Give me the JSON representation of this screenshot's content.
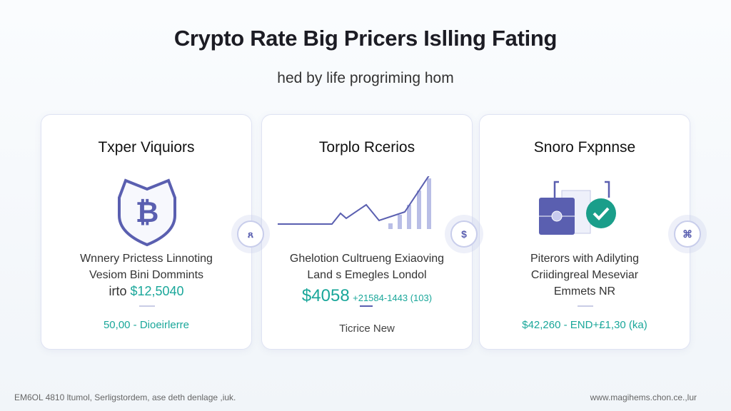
{
  "header": {
    "title": "Crypto Rate Big Pricers Islling Fating",
    "subtitle": "hed by life progriming hom"
  },
  "cards": [
    {
      "title": "Txper Viquiors",
      "icon": "bitcoin-shield-icon",
      "desc_lines": [
        "Wnnery Prictess Linnoting",
        "Vesiom Bini Dommints"
      ],
      "desc_prefix": "irto ",
      "price": "$12,5040",
      "footer": "50,00 - Dioeirlerre"
    },
    {
      "title": "Torplo Rcerios",
      "icon": "growth-chart-icon",
      "desc_lines": [
        "Ghelotion Cultrueng Exiaoving",
        "Land s Emegles Londol"
      ],
      "price": "$4058",
      "price_detail": "+21584-1443 (103)",
      "footer": "Ticrice New"
    },
    {
      "title": "Snoro Fxpnnse",
      "icon": "wallet-check-icon",
      "desc_lines": [
        "Piterors with Adilyting",
        "Criidingreal Meseviar",
        "Emmets NR"
      ],
      "footer": "$42,260 - END+£1,30 (ka)"
    }
  ],
  "connectors": [
    {
      "icon": "link-icon",
      "glyph": "ጸ"
    },
    {
      "icon": "dollar-icon",
      "glyph": "$"
    },
    {
      "icon": "transfer-icon",
      "glyph": "⌘"
    }
  ],
  "footer": {
    "left": "EM6OL 4810 ltumol, Serligstordem, ase deth denlage ,iuk.",
    "right": "www.magihems.chon.ce.,lur"
  },
  "colors": {
    "accent": "#5a5fb0",
    "teal": "#1aa79a"
  }
}
